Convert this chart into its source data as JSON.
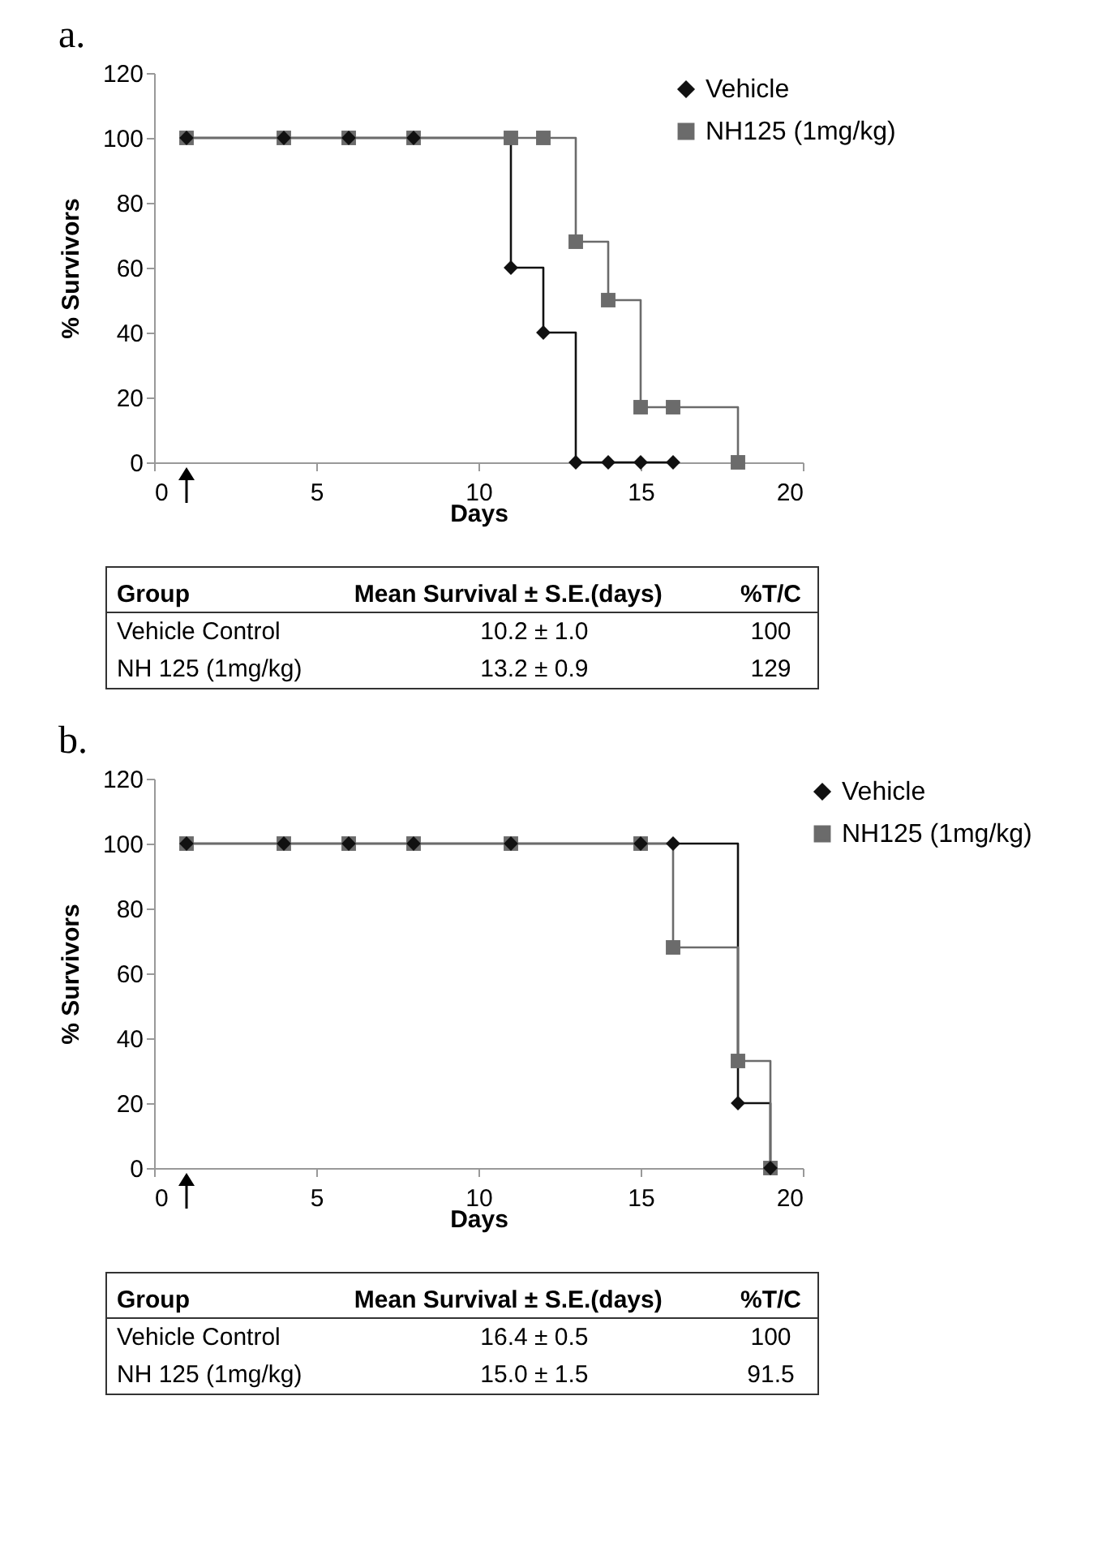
{
  "chart_data": [
    {
      "type": "step",
      "title": "a.",
      "xlabel": "Days",
      "ylabel": "% Survivors",
      "legend": "top right",
      "grid": false,
      "line_style": "solid",
      "xlim": [
        0,
        20
      ],
      "xticks": [
        0,
        5,
        10,
        15,
        20
      ],
      "ylim": [
        0,
        120
      ],
      "yticks": [
        0,
        20,
        40,
        60,
        80,
        100,
        120
      ],
      "series": [
        {
          "name": "Vehicle",
          "color": "#111111",
          "marker": "diamond",
          "x": [
            1,
            4,
            6,
            8,
            11,
            12,
            13,
            14,
            15,
            16
          ],
          "values": [
            100,
            100,
            100,
            100,
            60,
            40,
            0,
            0,
            0,
            0
          ]
        },
        {
          "name": "NH125 (1mg/kg)",
          "color": "#6b6b6b",
          "marker": "square",
          "x": [
            1,
            4,
            6,
            8,
            11,
            12,
            13,
            14,
            15,
            16,
            18
          ],
          "values": [
            100,
            100,
            100,
            100,
            100,
            100,
            68,
            50,
            17,
            17,
            0
          ]
        }
      ],
      "annotations": [
        "Group",
        "Mean Survival ± S.E.(days)",
        "%T/C",
        "Vehicle Control",
        "10.2  ±  1.0",
        "100",
        "NH 125 (1mg/kg)",
        "13.2  ±  0.9",
        "129"
      ]
    },
    {
      "type": "step",
      "title": "b.",
      "xlabel": "Days",
      "ylabel": "% Survivors",
      "legend": "right",
      "grid": false,
      "line_style": "solid",
      "xlim": [
        0,
        20
      ],
      "xticks": [
        0,
        5,
        10,
        15,
        20
      ],
      "ylim": [
        0,
        120
      ],
      "yticks": [
        0,
        20,
        40,
        60,
        80,
        100,
        120
      ],
      "series": [
        {
          "name": "Vehicle",
          "color": "#111111",
          "marker": "diamond",
          "x": [
            1,
            4,
            6,
            8,
            11,
            15,
            16,
            18,
            19
          ],
          "values": [
            100,
            100,
            100,
            100,
            100,
            100,
            100,
            20,
            0
          ]
        },
        {
          "name": "NH125 (1mg/kg)",
          "color": "#6b6b6b",
          "marker": "square",
          "x": [
            1,
            4,
            6,
            8,
            11,
            15,
            16,
            18,
            19
          ],
          "values": [
            100,
            100,
            100,
            100,
            100,
            100,
            68,
            33,
            0
          ]
        }
      ],
      "annotations": [
        "Group",
        "Mean Survival ± S.E.(days)",
        "%T/C",
        "Vehicle Control",
        "16.4  ±  0.5",
        "100",
        "NH 125 (1mg/kg)",
        "15.0  ±  1.5",
        "91.5"
      ]
    }
  ]
}
